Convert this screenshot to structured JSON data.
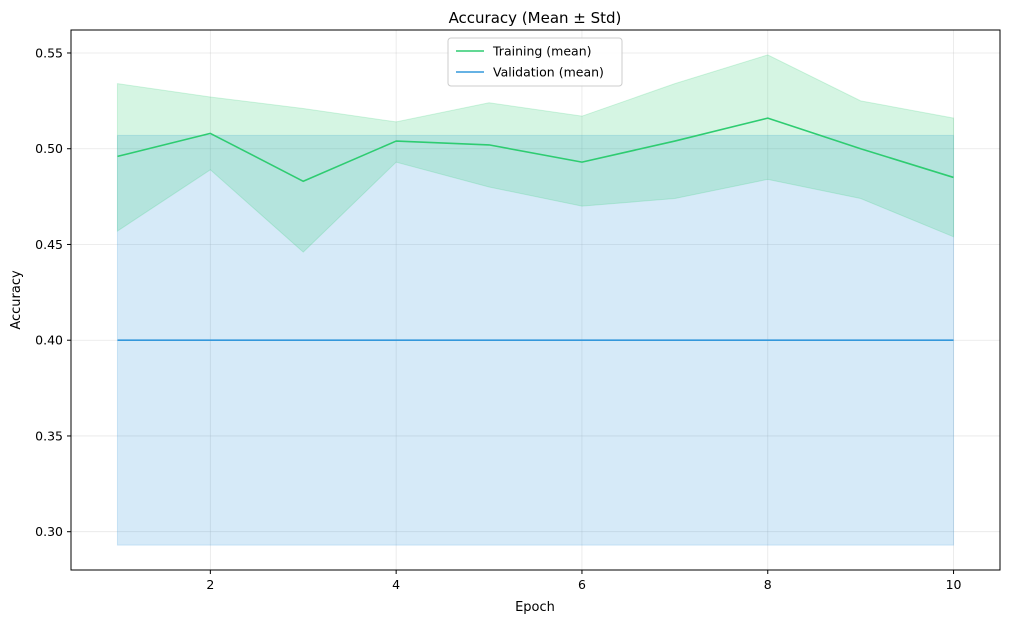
{
  "chart_data": {
    "type": "line",
    "title": "Accuracy (Mean ± Std)",
    "xlabel": "Epoch",
    "ylabel": "Accuracy",
    "xlim": [
      0.5,
      10.5
    ],
    "ylim": [
      0.28,
      0.562
    ],
    "xticks": [
      2,
      4,
      6,
      8,
      10
    ],
    "xtick_labels": [
      "2",
      "4",
      "6",
      "8",
      "10"
    ],
    "yticks": [
      0.3,
      0.35,
      0.4,
      0.45,
      0.5,
      0.55
    ],
    "ytick_labels": [
      "0.30",
      "0.35",
      "0.40",
      "0.45",
      "0.50",
      "0.55"
    ],
    "grid": true,
    "legend_position": "top-center",
    "x": [
      1,
      2,
      3,
      4,
      5,
      6,
      7,
      8,
      9,
      10
    ],
    "series": [
      {
        "name": "Training (mean)",
        "color": "#2ecc71",
        "mean": [
          0.496,
          0.508,
          0.483,
          0.504,
          0.502,
          0.493,
          0.504,
          0.516,
          0.5,
          0.485
        ],
        "upper": [
          0.534,
          0.527,
          0.521,
          0.514,
          0.524,
          0.517,
          0.534,
          0.549,
          0.525,
          0.516
        ],
        "lower": [
          0.457,
          0.489,
          0.446,
          0.493,
          0.48,
          0.47,
          0.474,
          0.484,
          0.474,
          0.454
        ]
      },
      {
        "name": "Validation (mean)",
        "color": "#3498db",
        "mean": [
          0.4,
          0.4,
          0.4,
          0.4,
          0.4,
          0.4,
          0.4,
          0.4,
          0.4,
          0.4
        ],
        "upper": [
          0.507,
          0.507,
          0.507,
          0.507,
          0.507,
          0.507,
          0.507,
          0.507,
          0.507,
          0.507
        ],
        "lower": [
          0.293,
          0.293,
          0.293,
          0.293,
          0.293,
          0.293,
          0.293,
          0.293,
          0.293,
          0.293
        ]
      }
    ]
  }
}
